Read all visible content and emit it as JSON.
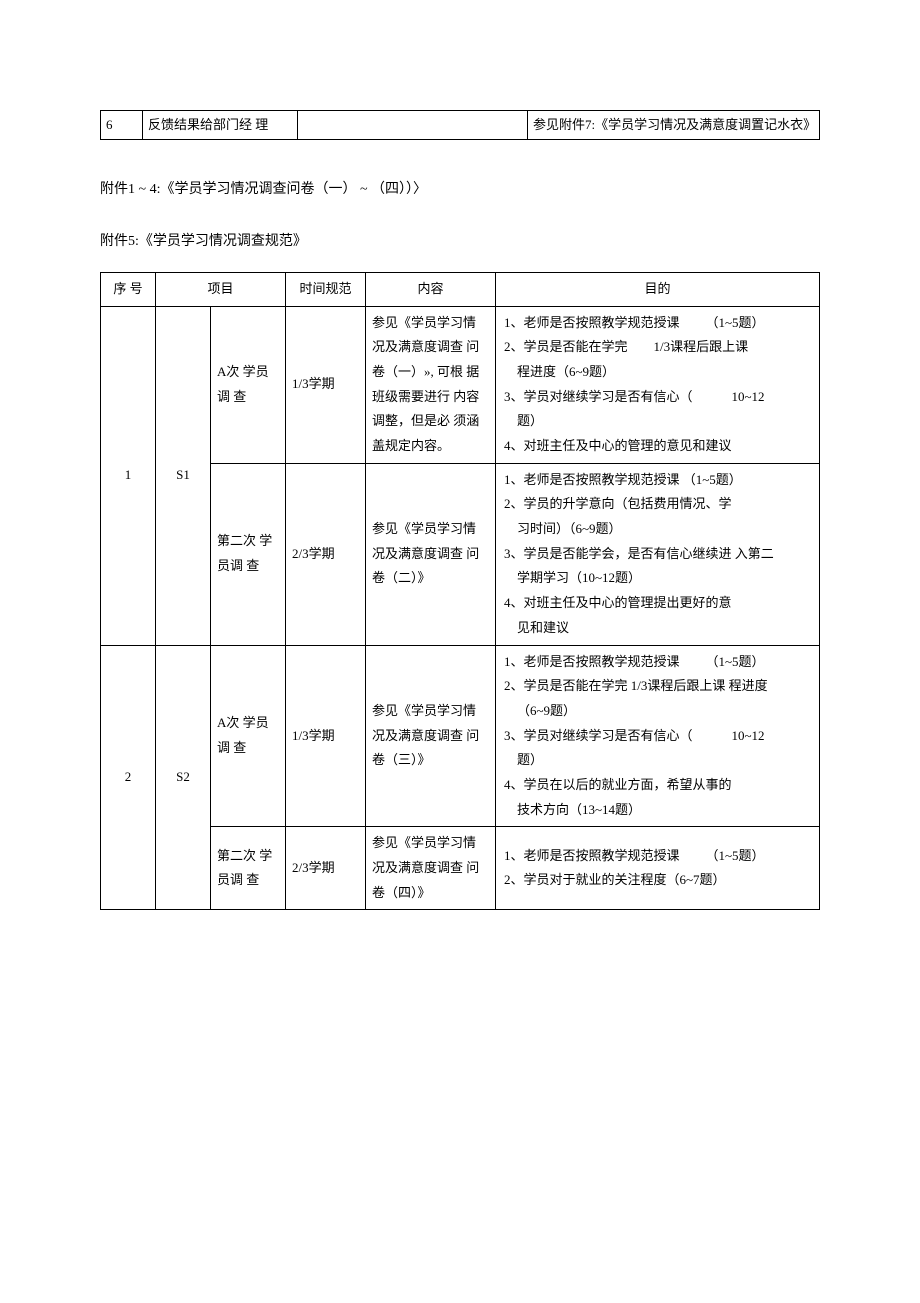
{
  "topTable": {
    "cells": {
      "c1": "6",
      "c2": "反馈结果给部门经 理",
      "c3": "",
      "c4": "参见附件7:《学员学习情况及满意度调置记水衣》"
    },
    "widths": {
      "c1": "42px",
      "c2": "155px",
      "c3": "230px",
      "c4": "auto"
    }
  },
  "para1": "附件1 ~ 4:《学员学习情况调查问卷（一）        ~ （四））〉",
  "para2": "附件5:《学员学习情况调查规范》",
  "mainTable": {
    "headers": {
      "h1": "序 号",
      "h2": "项目",
      "h3": "时间规范",
      "h4": "内容",
      "h5": "目的"
    },
    "widths": {
      "c1": "55px",
      "c2a": "55px",
      "c2b": "75px",
      "c3": "80px",
      "c4": "130px",
      "c5": "auto"
    },
    "rows": [
      {
        "seq": "1",
        "stage": "S1",
        "sub": [
          {
            "proj": "A次 学员 调 查",
            "time": "1/3学期",
            "content": "参见《学员学习情 况及满意度调查 问卷（一）», 可根 据班级需要进行 内容调整，但是必 须涵盖规定内容。",
            "purpose": "1、老师是否按照教学规范授课  （1~5题）\n2、学员是否能在学完  1/3课程后跟上课\n 程进度（6~9题）\n3、学员对继续学习是否有信心（   10~12\n 题）\n4、对班主任及中心的管理的意见和建议"
          },
          {
            "proj": "第二次 学 员调 查",
            "time": "2/3学期",
            "content": "参见《学员学习情 况及满意度调查 问卷（二）》",
            "purpose": "1、老师是否按照教学规范授课  （1~5题）\n2、学员的升学意向（包括费用情况、学\n 习时间）（6~9题）\n3、学员是否能学会，是否有信心继续进 入第二\n 学期学习（10~12题）\n4、对班主任及中心的管理提出更好的意\n 见和建议"
          }
        ]
      },
      {
        "seq": "2",
        "stage": "S2",
        "sub": [
          {
            "proj": "A次 学员 调 查",
            "time": "1/3学期",
            "content": "参见《学员学习情 况及满意度调查 问卷（三）》",
            "purpose": "1、老师是否按照教学规范授课  （1~5题）\n2、学员是否能在学完 1/3课程后跟上课 程进度\n （6~9题）\n3、学员对继续学习是否有信心（   10~12\n 题）\n4、学员在以后的就业方面，希望从事的\n 技术方向（13~14题）"
          },
          {
            "proj": "第二次 学 员调 查",
            "time": "2/3学期",
            "content": "参见《学员学习情 况及满意度调查 问卷（四）》",
            "purpose": "1、老师是否按照教学规范授课  （1~5题）\n2、学员对于就业的关注程度（6~7题）"
          }
        ]
      }
    ]
  }
}
